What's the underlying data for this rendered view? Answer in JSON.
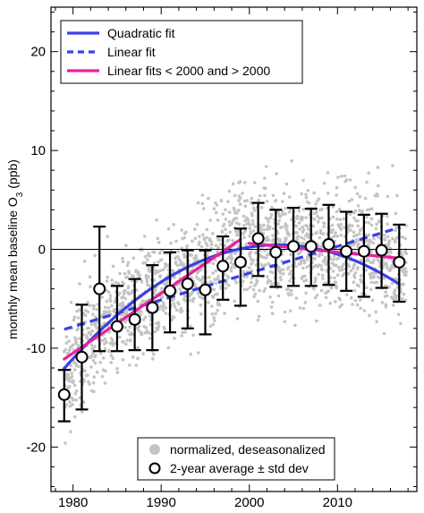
{
  "chart_data": {
    "type": "scatter",
    "title": "",
    "xlabel": "",
    "ylabel": "monthly mean baseline O",
    "ylabel_sub": "3",
    "ylabel_unit": " (ppb)",
    "xlim": [
      1977.5,
      2019
    ],
    "ylim": [
      -24.5,
      24.5
    ],
    "xticks": [
      1980,
      1990,
      2000,
      2010
    ],
    "yticks": [
      -20,
      -10,
      0,
      10,
      20
    ],
    "zero_line": true,
    "grid": false,
    "legend_top": {
      "placement": "top-left",
      "entries": [
        {
          "label": "Quadratic fit",
          "style": "solid",
          "color": "#3a40e8"
        },
        {
          "label": "Linear fit",
          "style": "dashed",
          "color": "#3a40e8"
        },
        {
          "label": "Linear fits < 2000 and > 2000",
          "style": "solid",
          "color": "#e8209e"
        }
      ]
    },
    "legend_bottom": {
      "placement": "bottom-center",
      "entries": [
        {
          "label": "normalized, deseasonalized",
          "marker": "filled-circle",
          "color": "#c4c4c4"
        },
        {
          "label": "2-year average ± std dev",
          "marker": "open-circle",
          "color": "#000000"
        }
      ]
    },
    "scatter_series": {
      "name": "normalized, deseasonalized",
      "color": "#c4c4c4",
      "mean_points": [
        [
          1979,
          -14.5
        ],
        [
          1980,
          -11.5
        ],
        [
          1981,
          -10.0
        ],
        [
          1982,
          -9.0
        ],
        [
          1983,
          -8.2
        ],
        [
          1984,
          -7.5
        ],
        [
          1985,
          -7.0
        ],
        [
          1986,
          -6.2
        ],
        [
          1987,
          -5.8
        ],
        [
          1988,
          -5.0
        ],
        [
          1989,
          -4.6
        ],
        [
          1990,
          -4.1
        ],
        [
          1991,
          -3.5
        ],
        [
          1992,
          -3.2
        ],
        [
          1993,
          -2.7
        ],
        [
          1994,
          -2.3
        ],
        [
          1995,
          -1.8
        ],
        [
          1996,
          -1.3
        ],
        [
          1997,
          -0.6
        ],
        [
          1998,
          0.0
        ],
        [
          1999,
          0.5
        ],
        [
          2000,
          0.6
        ],
        [
          2001,
          0.2
        ],
        [
          2002,
          0.3
        ],
        [
          2003,
          0.4
        ],
        [
          2004,
          0.5
        ],
        [
          2005,
          0.2
        ],
        [
          2006,
          0.5
        ],
        [
          2007,
          0.4
        ],
        [
          2008,
          0.1
        ],
        [
          2009,
          0.0
        ],
        [
          2010,
          -0.2
        ],
        [
          2011,
          -0.1
        ],
        [
          2012,
          -0.3
        ],
        [
          2013,
          -0.1
        ],
        [
          2014,
          -0.4
        ],
        [
          2015,
          -0.8
        ],
        [
          2016,
          -1.0
        ],
        [
          2017,
          -1.4
        ]
      ],
      "spread": [
        [
          1979,
          4.0
        ],
        [
          1985,
          3.6
        ],
        [
          1990,
          3.8
        ],
        [
          1995,
          4.0
        ],
        [
          2000,
          4.4
        ],
        [
          2005,
          4.2
        ],
        [
          2010,
          4.0
        ],
        [
          2017,
          3.9
        ]
      ]
    },
    "two_year_average": {
      "name": "2-year average ± std dev",
      "points": [
        {
          "x": 1979,
          "y": -14.7,
          "low": -17.4,
          "high": -12.2
        },
        {
          "x": 1981,
          "y": -10.9,
          "low": -16.2,
          "high": -5.6
        },
        {
          "x": 1983,
          "y": -4.0,
          "low": -10.3,
          "high": 2.3
        },
        {
          "x": 1985,
          "y": -7.8,
          "low": -10.3,
          "high": -3.7
        },
        {
          "x": 1987,
          "y": -7.1,
          "low": -10.2,
          "high": -3.0
        },
        {
          "x": 1989,
          "y": -5.9,
          "low": -10.2,
          "high": -1.6
        },
        {
          "x": 1991,
          "y": -4.2,
          "low": -8.4,
          "high": -0.3
        },
        {
          "x": 1993,
          "y": -3.5,
          "low": -8.0,
          "high": -0.1
        },
        {
          "x": 1995,
          "y": -4.1,
          "low": -8.6,
          "high": -0.1
        },
        {
          "x": 1997,
          "y": -1.7,
          "low": -5.1,
          "high": 1.3
        },
        {
          "x": 1999,
          "y": -1.3,
          "low": -5.7,
          "high": 2.1
        },
        {
          "x": 2001,
          "y": 1.1,
          "low": -2.7,
          "high": 4.7
        },
        {
          "x": 2003,
          "y": -0.3,
          "low": -3.8,
          "high": 4.0
        },
        {
          "x": 2005,
          "y": 0.3,
          "low": -3.7,
          "high": 4.2
        },
        {
          "x": 2007,
          "y": 0.3,
          "low": -3.7,
          "high": 4.1
        },
        {
          "x": 2009,
          "y": 0.5,
          "low": -3.6,
          "high": 4.5
        },
        {
          "x": 2011,
          "y": -0.2,
          "low": -4.2,
          "high": 3.8
        },
        {
          "x": 2013,
          "y": -0.2,
          "low": -4.8,
          "high": 3.5
        },
        {
          "x": 2015,
          "y": -0.1,
          "low": -3.9,
          "high": 3.6
        },
        {
          "x": 2017,
          "y": -1.3,
          "low": -5.3,
          "high": 2.5
        }
      ]
    },
    "fits": [
      {
        "name": "Quadratic fit",
        "style": "solid",
        "color": "#3a40e8",
        "x_range": [
          1979,
          2017
        ],
        "vertex_x": 2003.3,
        "vertex_y": 0.45,
        "curvature": -0.0212
      },
      {
        "name": "Linear fit",
        "style": "dashed",
        "color": "#3a40e8",
        "points": [
          [
            1979,
            -8.1
          ],
          [
            2017,
            2.2
          ]
        ]
      },
      {
        "name": "Linear fits < 2000",
        "style": "solid",
        "color": "#e8209e",
        "points": [
          [
            1979,
            -11.1
          ],
          [
            1999,
            1.0
          ]
        ]
      },
      {
        "name": "Linear fits > 2000",
        "style": "solid",
        "color": "#e8209e",
        "points": [
          [
            2000,
            0.6
          ],
          [
            2017,
            -0.9
          ]
        ]
      }
    ]
  }
}
